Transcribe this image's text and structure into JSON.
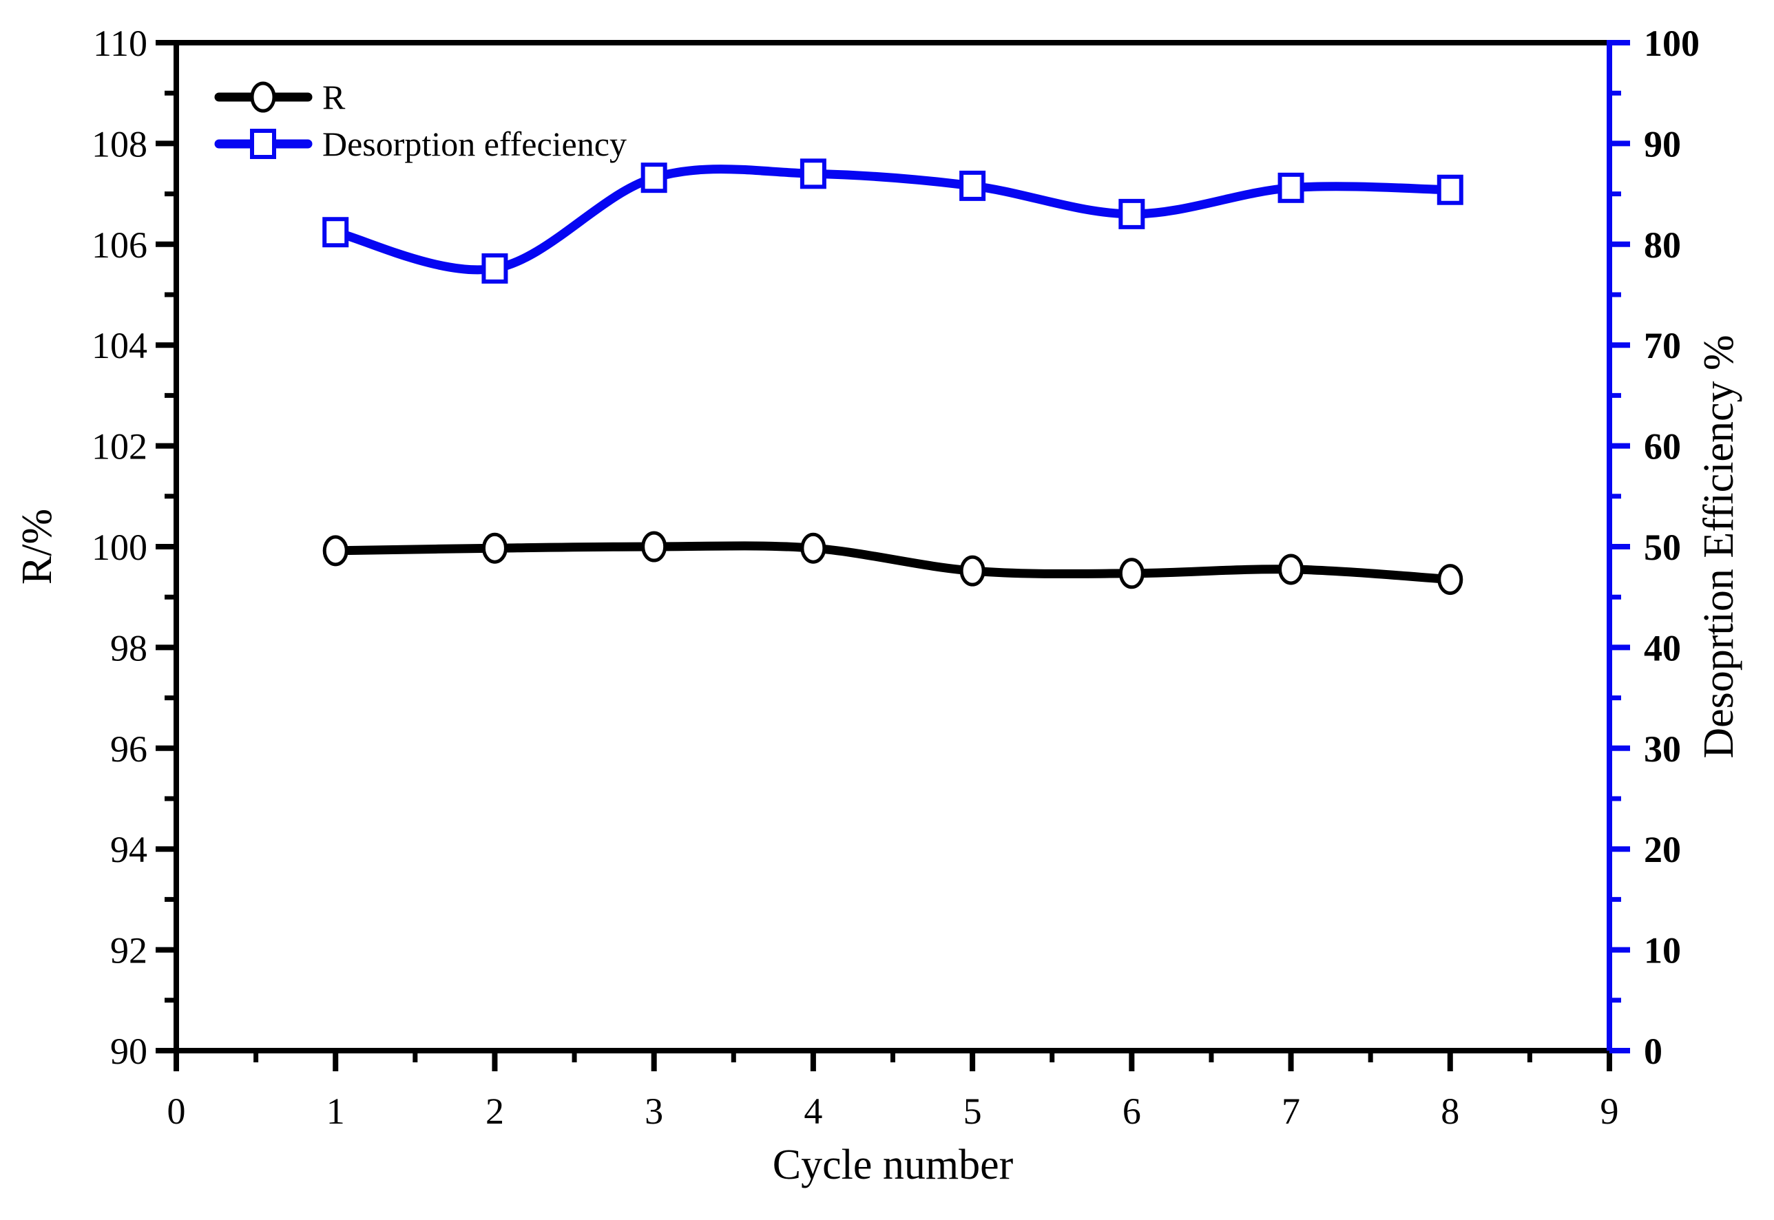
{
  "figure": {
    "background": "#ffffff"
  },
  "chart_data": {
    "type": "line",
    "title": "",
    "x_axis": {
      "label": "Cycle number",
      "min": 0,
      "max": 9,
      "major_tick_values": [
        0,
        1,
        2,
        3,
        4,
        5,
        6,
        7,
        8,
        9
      ],
      "tick_labels": [
        "0",
        "1",
        "2",
        "3",
        "4",
        "5",
        "6",
        "7",
        "8",
        "9"
      ],
      "minor_step": 0.5,
      "color": "#000000"
    },
    "left_axis": {
      "label": "R/%",
      "min": 90,
      "max": 110,
      "major_tick_values": [
        90,
        92,
        94,
        96,
        98,
        100,
        102,
        104,
        106,
        108,
        110
      ],
      "tick_labels": [
        "90",
        "92",
        "94",
        "96",
        "98",
        "100",
        "102",
        "104",
        "106",
        "108",
        "110"
      ],
      "minor_step": 1,
      "color": "#000000"
    },
    "right_axis": {
      "label": "Desoprtion Efficiency %",
      "min": 0,
      "max": 100,
      "major_tick_values": [
        0,
        10,
        20,
        30,
        40,
        50,
        60,
        70,
        80,
        90,
        100
      ],
      "tick_labels": [
        "0",
        "10",
        "20",
        "30",
        "40",
        "50",
        "60",
        "70",
        "80",
        "90",
        "100"
      ],
      "minor_step": 5,
      "color": "#0606f2"
    },
    "x": [
      1,
      2,
      3,
      4,
      5,
      6,
      7,
      8
    ],
    "series": [
      {
        "name": "R",
        "axis": "left",
        "color": "#000000",
        "marker": "circle",
        "values": [
          99.92,
          99.97,
          100.0,
          99.97,
          99.52,
          99.47,
          99.55,
          99.35
        ]
      },
      {
        "name": "Desorption effeciency",
        "axis": "right",
        "color": "#0606f2",
        "marker": "square",
        "values": [
          81.2,
          77.6,
          86.6,
          87.0,
          85.8,
          83.0,
          85.6,
          85.4
        ]
      }
    ],
    "legend": {
      "position": "top-left",
      "items": [
        "R",
        "Desorption effeciency"
      ]
    },
    "grid": false
  }
}
